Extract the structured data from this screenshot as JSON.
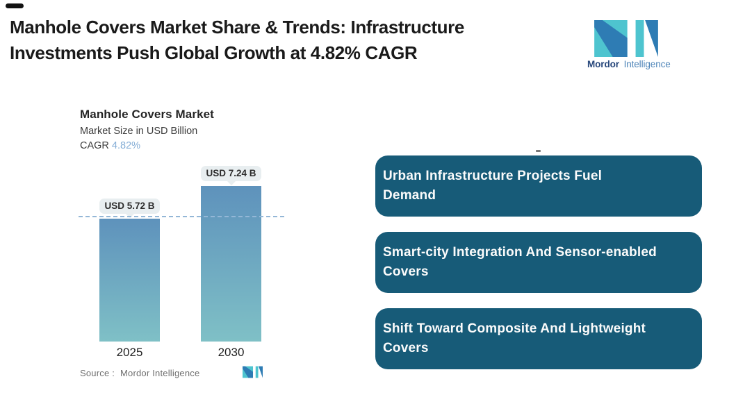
{
  "header": {
    "title_line1": "Manhole Covers Market Share & Trends: Infrastructure",
    "title_line2": "Investments Push Global Growth at 4.82% CAGR"
  },
  "brand": {
    "name_bold": "Mordor",
    "name_light": "Intelligence",
    "teal": "#4ec4cf",
    "blue": "#2e7cb4"
  },
  "chart_data": {
    "type": "bar",
    "title": "Manhole Covers Market",
    "subtitle": "Market Size in USD Billion",
    "cagr_label": "CAGR",
    "cagr_value": "4.82%",
    "categories": [
      "2025",
      "2030"
    ],
    "values": [
      5.72,
      7.24
    ],
    "value_labels": [
      "USD 5.72 B",
      "USD 7.24 B"
    ],
    "unit": "USD Billion",
    "ylim": [
      0,
      7.24
    ],
    "reference_dashed_line_at": 5.72,
    "grid": false,
    "legend": false,
    "bar_gradient_top": "#5e92bc",
    "bar_gradient_bottom": "#7fc0c6",
    "bubble_bg": "#e8eef0",
    "dash_color": "#94b7d7",
    "source_label": "Source :",
    "source_value": "Mordor Intelligence"
  },
  "highlights": {
    "box_bg": "#175b78",
    "text_color": "#fbfbfb",
    "items": [
      {
        "line1": "Urban Infrastructure Projects Fuel",
        "line2": "Demand"
      },
      {
        "line1": "Smart-city Integration And Sensor-enabled",
        "line2": "Covers"
      },
      {
        "line1": "Shift Toward Composite And Lightweight",
        "line2": "Covers"
      }
    ]
  },
  "accent": {
    "cagr_color": "#85aed6"
  }
}
